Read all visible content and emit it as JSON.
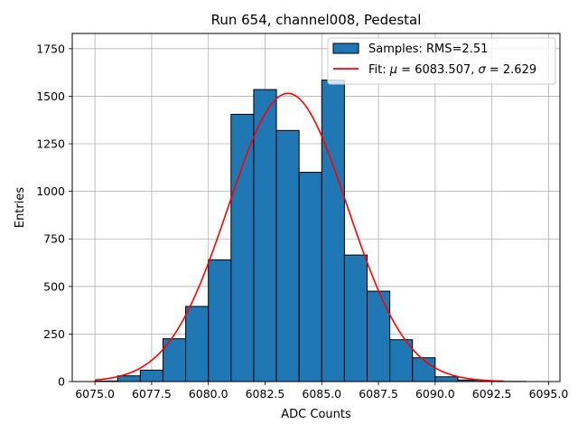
{
  "chart_data": {
    "type": "bar",
    "title": "Run 654, channel008, Pedestal",
    "xlabel": "ADC Counts",
    "ylabel": "Entries",
    "xlim": [
      6074.0,
      6095.5
    ],
    "ylim": [
      0,
      1830
    ],
    "xticks": [
      6075.0,
      6077.5,
      6080.0,
      6082.5,
      6085.0,
      6087.5,
      6090.0,
      6092.5,
      6095.0
    ],
    "xtick_labels": [
      "6075.0",
      "6077.5",
      "6080.0",
      "6082.5",
      "6085.0",
      "6087.5",
      "6090.0",
      "6092.5",
      "6095.0"
    ],
    "yticks": [
      0,
      250,
      500,
      750,
      1000,
      1250,
      1500,
      1750
    ],
    "ytick_labels": [
      "0",
      "250",
      "500",
      "750",
      "1000",
      "1250",
      "1500",
      "1750"
    ],
    "grid": true,
    "legend_position": "top-right",
    "histogram": {
      "name": "Samples: RMS=2.51",
      "color": "#1f77b4",
      "edge_color": "#000000",
      "bin_edges": [
        6075,
        6076,
        6077,
        6078,
        6079,
        6080,
        6081,
        6082,
        6083,
        6084,
        6085,
        6086,
        6087,
        6088,
        6089,
        6090,
        6091,
        6092,
        6093,
        6094,
        6095
      ],
      "counts": [
        3,
        30,
        60,
        225,
        395,
        640,
        1405,
        1535,
        1320,
        1100,
        1585,
        665,
        475,
        220,
        125,
        25,
        8,
        3,
        1,
        0
      ]
    },
    "fit": {
      "type": "gaussian",
      "color": "#ff0000",
      "legend_prefix": "Fit: ",
      "legend_mu_symbol": "μ",
      "legend_mu": " = 6083.507, ",
      "legend_sigma_symbol": "σ",
      "legend_sigma": " = 2.629",
      "mu": 6083.507,
      "sigma": 2.629,
      "amplitude": 1515,
      "x_range": [
        6075,
        6093
      ]
    }
  }
}
